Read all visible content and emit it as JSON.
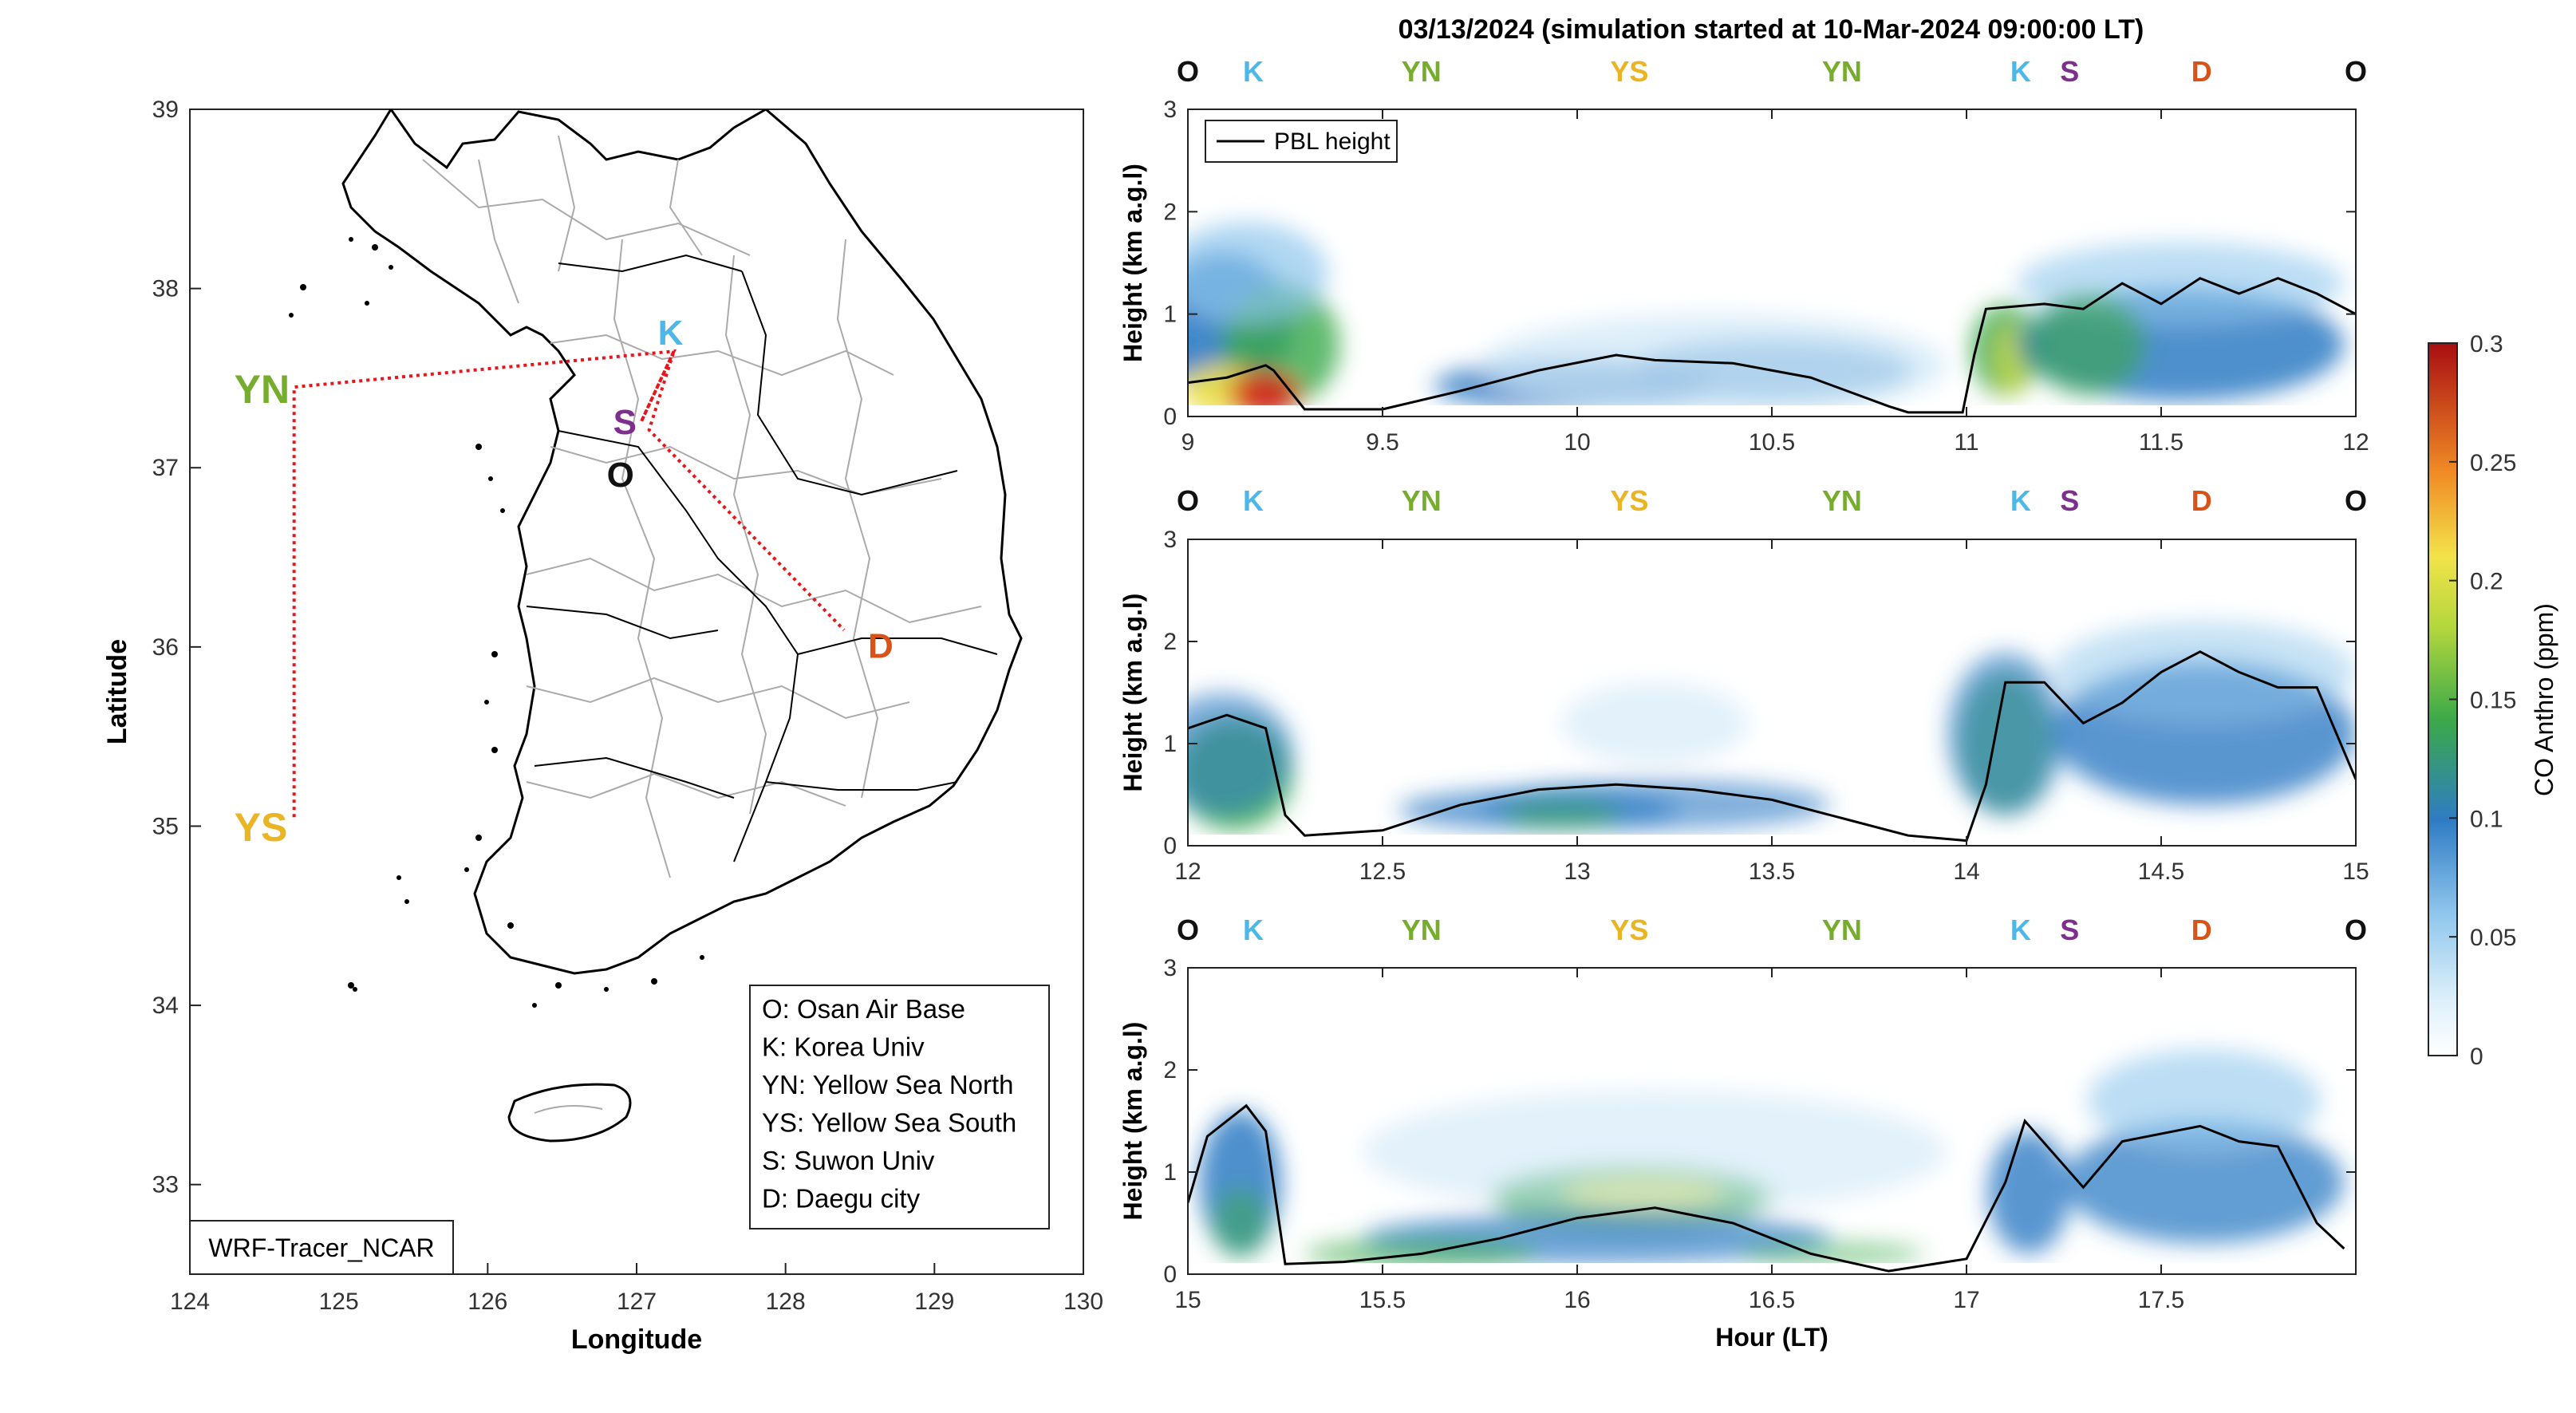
{
  "title": "03/13/2024 (simulation started at 10-Mar-2024 09:00:00 LT)",
  "colors": {
    "O": "#111111",
    "K": "#4db8e8",
    "YN": "#77ad2d",
    "YS": "#eab423",
    "S": "#7e2f8e",
    "D": "#d95319",
    "route": "#e8161b",
    "pbl": "#000000"
  },
  "station_labels": [
    "O",
    "K",
    "YN",
    "YS",
    "YN",
    "K",
    "S",
    "D",
    "O"
  ],
  "map": {
    "xlabel": "Longitude",
    "ylabel": "Latitude",
    "xticks": [
      "124",
      "125",
      "126",
      "127",
      "128",
      "129",
      "130"
    ],
    "yticks": [
      "39",
      "38",
      "37",
      "36",
      "35",
      "34",
      "33"
    ],
    "xlim": [
      124,
      130
    ],
    "ylim": [
      32.5,
      39
    ],
    "credit": "WRF-Tracer_NCAR",
    "stations": [
      {
        "id": "YN",
        "lon": 124.7,
        "lat": 37.45
      },
      {
        "id": "YS",
        "lon": 124.7,
        "lat": 35.05
      },
      {
        "id": "K",
        "lon": 127.25,
        "lat": 37.65
      },
      {
        "id": "S",
        "lon": 126.95,
        "lat": 37.3
      },
      {
        "id": "O",
        "lon": 126.95,
        "lat": 37.05
      },
      {
        "id": "D",
        "lon": 128.5,
        "lat": 36.05
      }
    ],
    "legend": [
      "O: Osan Air Base",
      "K: Korea Univ",
      "YN: Yellow Sea North",
      "YS: Yellow Sea South",
      "S: Suwon Univ",
      "D: Daegu city"
    ]
  },
  "chart_data": [
    {
      "type": "heatmap",
      "panel": "curtain-1",
      "xlim": [
        9,
        12
      ],
      "ylim": [
        0,
        3
      ],
      "xticks": [
        "9",
        "9.5",
        "10",
        "10.5",
        "11",
        "11.5",
        "12"
      ],
      "yticks": [
        "0",
        "1",
        "2",
        "3"
      ],
      "ylabel": "Height (km a.g.l)",
      "legend": "PBL height",
      "pbl": [
        [
          9.0,
          0.33
        ],
        [
          9.1,
          0.38
        ],
        [
          9.2,
          0.5
        ],
        [
          9.22,
          0.45
        ],
        [
          9.3,
          0.07
        ],
        [
          9.5,
          0.07
        ],
        [
          9.7,
          0.25
        ],
        [
          9.9,
          0.45
        ],
        [
          10.1,
          0.6
        ],
        [
          10.2,
          0.55
        ],
        [
          10.4,
          0.52
        ],
        [
          10.6,
          0.38
        ],
        [
          10.8,
          0.1
        ],
        [
          10.85,
          0.04
        ],
        [
          10.99,
          0.04
        ],
        [
          11.02,
          0.6
        ],
        [
          11.05,
          1.05
        ],
        [
          11.2,
          1.1
        ],
        [
          11.3,
          1.05
        ],
        [
          11.4,
          1.3
        ],
        [
          11.5,
          1.1
        ],
        [
          11.6,
          1.35
        ],
        [
          11.7,
          1.2
        ],
        [
          11.8,
          1.35
        ],
        [
          11.9,
          1.2
        ],
        [
          12.0,
          1.0
        ]
      ]
    },
    {
      "type": "heatmap",
      "panel": "curtain-2",
      "xlim": [
        12,
        15
      ],
      "ylim": [
        0,
        3
      ],
      "xticks": [
        "12",
        "12.5",
        "13",
        "13.5",
        "14",
        "14.5",
        "15"
      ],
      "yticks": [
        "0",
        "1",
        "2",
        "3"
      ],
      "ylabel": "Height (km a.g.l)",
      "pbl": [
        [
          12.0,
          1.15
        ],
        [
          12.1,
          1.28
        ],
        [
          12.2,
          1.15
        ],
        [
          12.25,
          0.3
        ],
        [
          12.3,
          0.1
        ],
        [
          12.5,
          0.15
        ],
        [
          12.7,
          0.4
        ],
        [
          12.9,
          0.55
        ],
        [
          13.1,
          0.6
        ],
        [
          13.3,
          0.55
        ],
        [
          13.5,
          0.45
        ],
        [
          13.7,
          0.25
        ],
        [
          13.85,
          0.1
        ],
        [
          14.0,
          0.05
        ],
        [
          14.05,
          0.6
        ],
        [
          14.1,
          1.6
        ],
        [
          14.2,
          1.6
        ],
        [
          14.3,
          1.2
        ],
        [
          14.4,
          1.4
        ],
        [
          14.5,
          1.7
        ],
        [
          14.6,
          1.9
        ],
        [
          14.7,
          1.7
        ],
        [
          14.8,
          1.55
        ],
        [
          14.9,
          1.55
        ],
        [
          15.0,
          0.65
        ]
      ]
    },
    {
      "type": "heatmap",
      "panel": "curtain-3",
      "xlim": [
        15,
        18
      ],
      "ylim": [
        0,
        3
      ],
      "xticks": [
        "15",
        "15.5",
        "16",
        "16.5",
        "17",
        "17.5"
      ],
      "yticks": [
        "0",
        "1",
        "2",
        "3"
      ],
      "ylabel": "Height (km a.g.l)",
      "xlabel": "Hour (LT)",
      "pbl": [
        [
          15.0,
          0.7
        ],
        [
          15.05,
          1.35
        ],
        [
          15.15,
          1.65
        ],
        [
          15.2,
          1.4
        ],
        [
          15.25,
          0.1
        ],
        [
          15.4,
          0.12
        ],
        [
          15.6,
          0.2
        ],
        [
          15.8,
          0.35
        ],
        [
          16.0,
          0.55
        ],
        [
          16.2,
          0.65
        ],
        [
          16.4,
          0.5
        ],
        [
          16.6,
          0.2
        ],
        [
          16.8,
          0.03
        ],
        [
          17.0,
          0.15
        ],
        [
          17.1,
          0.9
        ],
        [
          17.15,
          1.5
        ],
        [
          17.3,
          0.85
        ],
        [
          17.4,
          1.3
        ],
        [
          17.6,
          1.45
        ],
        [
          17.7,
          1.3
        ],
        [
          17.8,
          1.25
        ],
        [
          17.9,
          0.5
        ],
        [
          17.97,
          0.25
        ]
      ]
    }
  ],
  "colorbar": {
    "label": "CO Anthro (ppm)",
    "ticks": [
      "0.3",
      "0.25",
      "0.2",
      "0.15",
      "0.1",
      "0.05",
      "0"
    ],
    "range": [
      0,
      0.3
    ]
  }
}
